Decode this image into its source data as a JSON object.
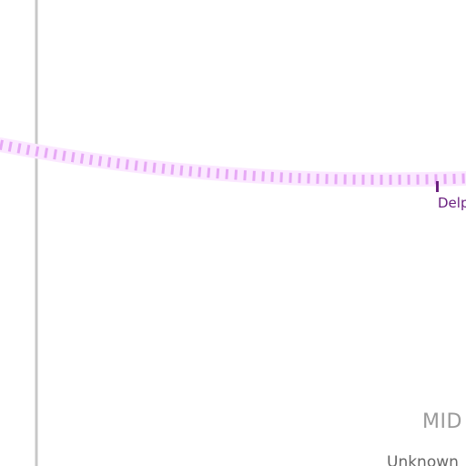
{
  "map": {
    "station_label": "Delp",
    "area_label": "MID",
    "road_label": "Unknown"
  },
  "colors": {
    "background": "#ffffff",
    "boundary_line": "#c8c8c8",
    "rail_dashes": "#e6a8f5",
    "rail_glow": "#fbe8ff",
    "station_tick": "#6a1f7f",
    "station_text": "#6a1f7f",
    "area_text": "#9a9a9a",
    "road_text": "#666666"
  },
  "icons": {
    "station_marker": "station-tick-icon"
  }
}
